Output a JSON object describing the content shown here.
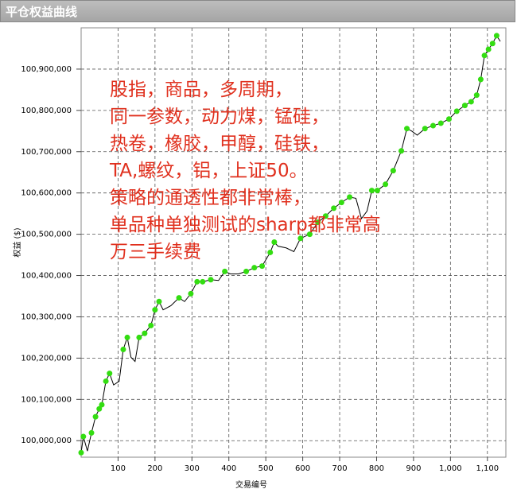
{
  "chart_data": {
    "type": "line",
    "title": "平仓权益曲线",
    "x_label": "交易编号",
    "y_label": "权益 ($)",
    "xlim": [
      0,
      1150
    ],
    "ylim": [
      99960000,
      101000000
    ],
    "xticks": [
      100,
      200,
      300,
      400,
      500,
      600,
      700,
      800,
      900,
      {
        "value": 1000,
        "label": "1,000"
      },
      {
        "value": 1100,
        "label": "1,100"
      }
    ],
    "yticks": [
      {
        "value": 100000000,
        "label": "100,000,000"
      },
      {
        "value": 100100000,
        "label": "100,100,000"
      },
      {
        "value": 100200000,
        "label": "100,200,000"
      },
      {
        "value": 100300000,
        "label": "100,300,000"
      },
      {
        "value": 100400000,
        "label": "100,400,000"
      },
      {
        "value": 100500000,
        "label": "100,500,000"
      },
      {
        "value": 100600000,
        "label": "100,600,000"
      },
      {
        "value": 100700000,
        "label": "100,700,000"
      },
      {
        "value": 100800000,
        "label": "100,800,000"
      },
      {
        "value": 100900000,
        "label": "100,900,000"
      }
    ],
    "grid": true,
    "color": "#000000",
    "marker_color": "#33dd11",
    "x": [
      0,
      6,
      17,
      28,
      39,
      49,
      56,
      67,
      77,
      88,
      103,
      114,
      125,
      135,
      146,
      157,
      172,
      189,
      200,
      211,
      222,
      243,
      265,
      280,
      297,
      314,
      329,
      351,
      372,
      389,
      404,
      426,
      447,
      469,
      490,
      512,
      523,
      533,
      555,
      576,
      594,
      619,
      641,
      662,
      684,
      705,
      727,
      744,
      759,
      774,
      787,
      802,
      824,
      845,
      867,
      882,
      895,
      910,
      931,
      953,
      974,
      996,
      1017,
      1039,
      1056,
      1071,
      1082,
      1092,
      1103,
      1114,
      1125,
      1135
    ],
    "values": [
      99971000,
      100010000,
      99975000,
      100019000,
      100058000,
      100077000,
      100087000,
      100144000,
      100163000,
      100135000,
      100144000,
      100221000,
      100250000,
      100202000,
      100192000,
      100250000,
      100260000,
      100279000,
      100317000,
      100337000,
      100317000,
      100327000,
      100346000,
      100337000,
      100356000,
      100385000,
      100385000,
      100390000,
      100388000,
      100410000,
      100404000,
      100404000,
      100410000,
      100419000,
      100423000,
      100456000,
      100481000,
      100471000,
      100467000,
      100458000,
      100490000,
      100500000,
      100529000,
      100544000,
      100563000,
      100577000,
      100590000,
      100587000,
      100538000,
      100556000,
      100606000,
      100606000,
      100621000,
      100654000,
      100702000,
      100756000,
      100750000,
      100740000,
      100756000,
      100763000,
      100769000,
      100779000,
      100798000,
      100812000,
      100821000,
      100837000,
      100875000,
      100933000,
      100948000,
      100962000,
      100981000,
      100967000
    ],
    "annotations": [
      "股指，商品，多周期，",
      "同一参数，动力煤，锰硅，",
      "热卷，橡胶，甲醇，硅铁，",
      "TA,螺纹，铝，上证50。",
      "策略的通透性都非常棒，",
      "单品种单独测试的sharp都非常高",
      "万三手续费"
    ]
  }
}
